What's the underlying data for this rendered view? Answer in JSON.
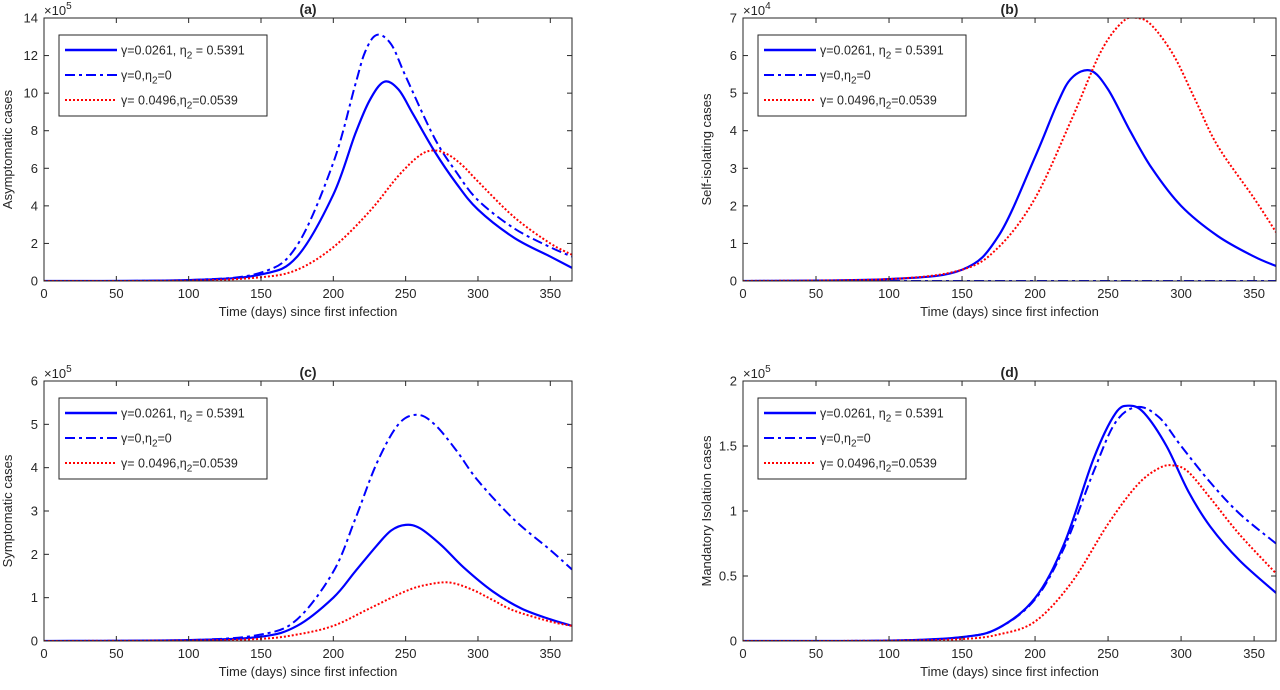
{
  "chart_data": [
    {
      "type": "line",
      "title": "(a)",
      "xlabel": "Time (days) since first infection",
      "ylabel": "Asymptomatic cases",
      "exponent_base": "×10",
      "exponent_power": "5",
      "xlim": [
        0,
        365
      ],
      "ylim": [
        0,
        14
      ],
      "x_ticks": [
        0,
        50,
        100,
        150,
        200,
        250,
        300,
        350
      ],
      "y_ticks": [
        0,
        2,
        4,
        6,
        8,
        10,
        12,
        14
      ],
      "grid": false,
      "legend_position": "top-left",
      "series": [
        {
          "name": "γ=0.0261, η2 = 0.5391",
          "color": "#0000ff",
          "style": "solid",
          "x": [
            0,
            100,
            150,
            175,
            200,
            215,
            225,
            235,
            245,
            255,
            270,
            285,
            300,
            325,
            350,
            365
          ],
          "y": [
            0,
            0.05,
            0.35,
            1.3,
            4.6,
            7.8,
            9.6,
            10.6,
            10.2,
            8.9,
            6.9,
            5.2,
            3.8,
            2.3,
            1.3,
            0.7
          ]
        },
        {
          "name": "γ=0,η2=0",
          "color": "#0000ff",
          "style": "dashdot",
          "x": [
            0,
            100,
            150,
            175,
            200,
            215,
            222,
            230,
            240,
            250,
            270,
            285,
            300,
            325,
            350,
            365
          ],
          "y": [
            0,
            0.05,
            0.45,
            1.9,
            6.3,
            10.4,
            12.2,
            13.1,
            12.6,
            10.9,
            7.6,
            5.8,
            4.3,
            2.8,
            1.8,
            1.3
          ]
        },
        {
          "name": "γ= 0.0496,η2=0.0539",
          "color": "#ff0000",
          "style": "dotted",
          "x": [
            0,
            100,
            150,
            175,
            200,
            225,
            245,
            260,
            270,
            280,
            290,
            300,
            325,
            350,
            365
          ],
          "y": [
            0,
            0.02,
            0.2,
            0.6,
            1.8,
            3.7,
            5.6,
            6.7,
            6.95,
            6.7,
            6.1,
            5.3,
            3.4,
            2.0,
            1.4
          ]
        }
      ]
    },
    {
      "type": "line",
      "title": "(b)",
      "xlabel": "Time (days) since first infection",
      "ylabel": "Self-isolating cases",
      "exponent_base": "×10",
      "exponent_power": "4",
      "xlim": [
        0,
        365
      ],
      "ylim": [
        0,
        7
      ],
      "x_ticks": [
        0,
        50,
        100,
        150,
        200,
        250,
        300,
        350
      ],
      "y_ticks": [
        0,
        1,
        2,
        3,
        4,
        5,
        6,
        7
      ],
      "grid": false,
      "legend_position": "top-left",
      "series": [
        {
          "name": "γ=0.0261, η2 = 0.5391",
          "color": "#0000ff",
          "style": "solid",
          "x": [
            0,
            100,
            150,
            175,
            200,
            215,
            225,
            238,
            250,
            265,
            280,
            300,
            325,
            350,
            365
          ],
          "y": [
            0,
            0.05,
            0.3,
            1.2,
            3.3,
            4.7,
            5.4,
            5.6,
            5.1,
            4.0,
            3.0,
            2.0,
            1.2,
            0.65,
            0.4
          ]
        },
        {
          "name": "γ=0,η2=0",
          "color": "#0000ff",
          "style": "dashdot",
          "x": [
            0,
            365
          ],
          "y": [
            0,
            0
          ]
        },
        {
          "name": "γ= 0.0496,η2=0.0539",
          "color": "#ff0000",
          "style": "dotted",
          "x": [
            0,
            100,
            150,
            175,
            200,
            225,
            245,
            260,
            270,
            280,
            295,
            310,
            325,
            350,
            365
          ],
          "y": [
            0,
            0.05,
            0.3,
            0.9,
            2.2,
            4.3,
            6.1,
            6.9,
            7.0,
            6.8,
            6.0,
            4.8,
            3.6,
            2.2,
            1.3
          ]
        }
      ]
    },
    {
      "type": "line",
      "title": "(c)",
      "xlabel": "Time (days) since first infection",
      "ylabel": "Symptomatic cases",
      "exponent_base": "×10",
      "exponent_power": "5",
      "xlim": [
        0,
        365
      ],
      "ylim": [
        0,
        6
      ],
      "x_ticks": [
        0,
        50,
        100,
        150,
        200,
        250,
        300,
        350
      ],
      "y_ticks": [
        0,
        1,
        2,
        3,
        4,
        5,
        6
      ],
      "grid": false,
      "legend_position": "top-left",
      "series": [
        {
          "name": "γ=0.0261, η2 = 0.5391",
          "color": "#0000ff",
          "style": "solid",
          "x": [
            0,
            100,
            150,
            175,
            200,
            215,
            230,
            240,
            250,
            260,
            275,
            290,
            310,
            330,
            350,
            365
          ],
          "y": [
            0,
            0.02,
            0.1,
            0.35,
            1.0,
            1.6,
            2.2,
            2.55,
            2.68,
            2.6,
            2.2,
            1.7,
            1.15,
            0.75,
            0.5,
            0.35
          ]
        },
        {
          "name": "γ=0,η2=0",
          "color": "#0000ff",
          "style": "dashdot",
          "x": [
            0,
            100,
            150,
            175,
            200,
            215,
            230,
            245,
            258,
            270,
            285,
            300,
            325,
            350,
            365
          ],
          "y": [
            0,
            0.02,
            0.15,
            0.5,
            1.6,
            2.8,
            4.1,
            5.0,
            5.22,
            5.0,
            4.4,
            3.7,
            2.8,
            2.1,
            1.65
          ]
        },
        {
          "name": "γ= 0.0496,η2=0.0539",
          "color": "#ff0000",
          "style": "dotted",
          "x": [
            0,
            100,
            150,
            175,
            200,
            225,
            250,
            265,
            280,
            295,
            310,
            325,
            350,
            365
          ],
          "y": [
            0,
            0.01,
            0.05,
            0.15,
            0.35,
            0.75,
            1.15,
            1.3,
            1.35,
            1.2,
            0.95,
            0.7,
            0.45,
            0.35
          ]
        }
      ]
    },
    {
      "type": "line",
      "title": "(d)",
      "xlabel": "Time (days) since first infection",
      "ylabel": "Mandatory Isolation cases",
      "exponent_base": "×10",
      "exponent_power": "5",
      "xlim": [
        0,
        365
      ],
      "ylim": [
        0,
        2
      ],
      "x_ticks": [
        0,
        50,
        100,
        150,
        200,
        250,
        300,
        350
      ],
      "y_ticks": [
        0,
        0.5,
        1,
        1.5,
        2
      ],
      "y_tick_labels": [
        "0",
        "0.5",
        "1",
        "1.5",
        "2"
      ],
      "grid": false,
      "legend_position": "top-left",
      "series": [
        {
          "name": "γ=0.0261, η2 = 0.5391",
          "color": "#0000ff",
          "style": "solid",
          "x": [
            0,
            100,
            150,
            175,
            200,
            220,
            240,
            255,
            265,
            275,
            290,
            305,
            320,
            340,
            365
          ],
          "y": [
            0,
            0.003,
            0.03,
            0.1,
            0.33,
            0.75,
            1.4,
            1.75,
            1.81,
            1.75,
            1.5,
            1.15,
            0.88,
            0.62,
            0.37
          ]
        },
        {
          "name": "γ=0,η2=0",
          "color": "#0000ff",
          "style": "dashdot",
          "x": [
            0,
            100,
            150,
            175,
            200,
            220,
            240,
            255,
            270,
            285,
            300,
            320,
            340,
            365
          ],
          "y": [
            0,
            0.003,
            0.03,
            0.1,
            0.32,
            0.72,
            1.3,
            1.68,
            1.8,
            1.72,
            1.5,
            1.22,
            0.98,
            0.75
          ]
        },
        {
          "name": "γ= 0.0496,η2=0.0539",
          "color": "#ff0000",
          "style": "dotted",
          "x": [
            0,
            100,
            150,
            175,
            200,
            225,
            250,
            270,
            285,
            295,
            305,
            320,
            340,
            365
          ],
          "y": [
            0,
            0.002,
            0.015,
            0.05,
            0.15,
            0.45,
            0.9,
            1.2,
            1.33,
            1.35,
            1.3,
            1.1,
            0.82,
            0.52
          ]
        }
      ]
    }
  ]
}
